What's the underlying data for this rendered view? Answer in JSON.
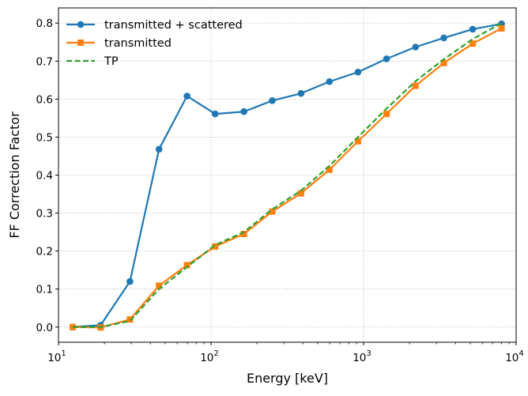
{
  "chart_data": {
    "type": "line",
    "xlabel": "Energy [keV]",
    "ylabel": "FF Correction Factor",
    "xscale": "log",
    "xlim": [
      10,
      10000
    ],
    "ylim": [
      -0.04,
      0.84
    ],
    "x_ticks": [
      {
        "value": 10,
        "base": "10",
        "exp": "1"
      },
      {
        "value": 100,
        "base": "10",
        "exp": "2"
      },
      {
        "value": 1000,
        "base": "10",
        "exp": "3"
      },
      {
        "value": 10000,
        "base": "10",
        "exp": "4"
      }
    ],
    "y_ticks": [
      {
        "value": 0.0,
        "label": "0.0"
      },
      {
        "value": 0.1,
        "label": "0.1"
      },
      {
        "value": 0.2,
        "label": "0.2"
      },
      {
        "value": 0.3,
        "label": "0.3"
      },
      {
        "value": 0.4,
        "label": "0.4"
      },
      {
        "value": 0.5,
        "label": "0.5"
      },
      {
        "value": 0.6,
        "label": "0.6"
      },
      {
        "value": 0.7,
        "label": "0.7"
      },
      {
        "value": 0.8,
        "label": "0.8"
      }
    ],
    "grid": true,
    "legend_position": "top-left",
    "x": [
      12.4,
      18.9,
      29.4,
      45.6,
      69.6,
      106.4,
      164.3,
      252.0,
      389.0,
      597.0,
      919.0,
      1414.0,
      2190.0,
      3360.0,
      5190.0,
      8020.0
    ],
    "series": [
      {
        "name": "transmitted + scattered",
        "color": "#1f77b4",
        "style": "solid",
        "marker": "circle",
        "values": [
          0.0,
          0.005,
          0.12,
          0.468,
          0.608,
          0.561,
          0.567,
          0.596,
          0.615,
          0.646,
          0.671,
          0.706,
          0.737,
          0.761,
          0.784,
          0.798
        ]
      },
      {
        "name": "transmitted",
        "color": "#ff7f0e",
        "style": "solid",
        "marker": "square",
        "values": [
          0.0,
          -0.001,
          0.02,
          0.109,
          0.163,
          0.212,
          0.245,
          0.304,
          0.352,
          0.414,
          0.489,
          0.561,
          0.635,
          0.695,
          0.746,
          0.786
        ]
      },
      {
        "name": "TP",
        "color": "#2ca02c",
        "style": "dashed",
        "marker": "none",
        "values": [
          0.0,
          0.0,
          0.016,
          0.1,
          0.158,
          0.216,
          0.25,
          0.31,
          0.359,
          0.424,
          0.5,
          0.575,
          0.647,
          0.705,
          0.758,
          0.8
        ]
      }
    ]
  }
}
